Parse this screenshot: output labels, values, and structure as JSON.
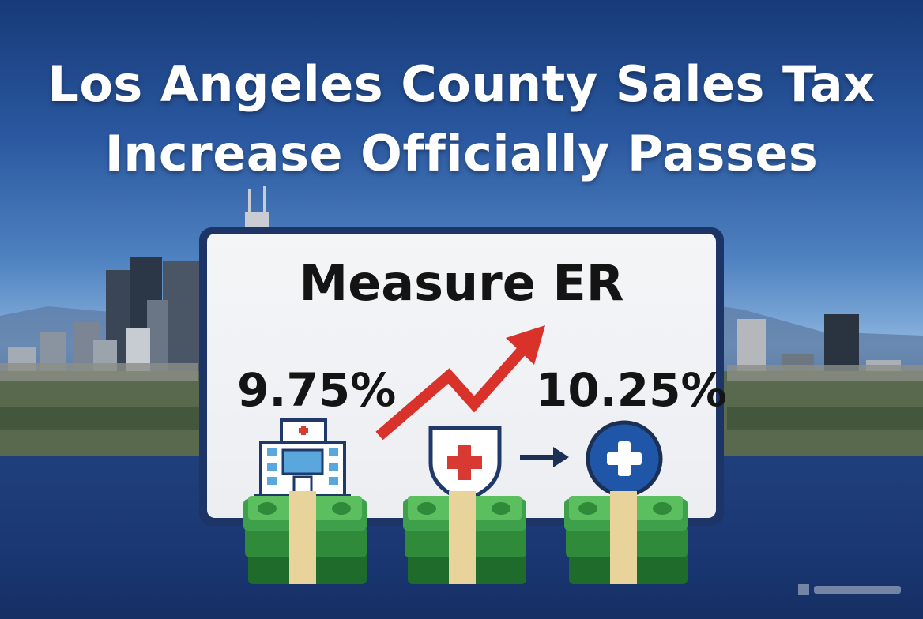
{
  "headline": {
    "line1": "Los Angeles County Sales Tax",
    "line2": "Increase Officially Passes"
  },
  "measure": "Measure ER",
  "rates": {
    "before": "9.75%",
    "after": "10.25%"
  },
  "icons": {
    "hospital": "hospital-icon",
    "shield": "medical-shield-icon",
    "arrow": "right-arrow-icon",
    "plus": "medical-plus-icon",
    "trend": "trend-up-arrow-icon",
    "money": "money-stack-icon"
  },
  "colors": {
    "sky_top": "#173a78",
    "trend_red": "#d8322a",
    "medical_red": "#d83a32",
    "navy": "#1c3566",
    "plus_blue": "#1f56a8",
    "cash_green": "#2f8a3a"
  }
}
